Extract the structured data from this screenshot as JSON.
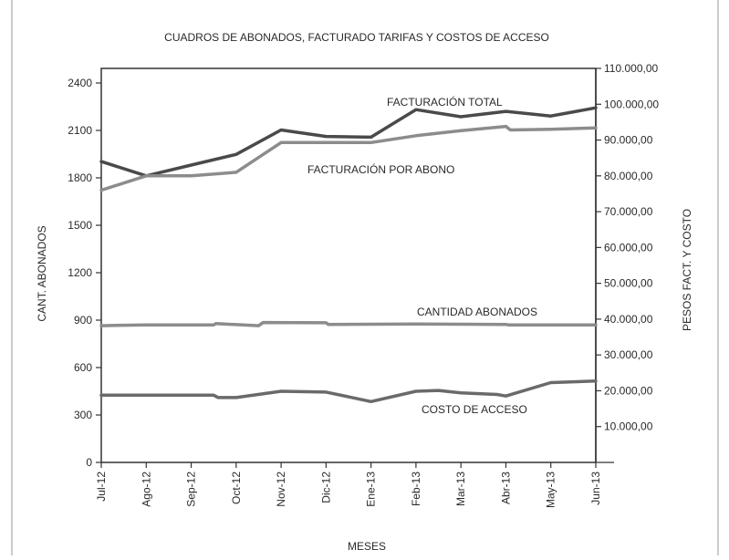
{
  "chart_data": {
    "type": "line",
    "title": "CUADROS DE ABONADOS, FACTURADO TARIFAS Y COSTOS DE ACCESO",
    "xlabel": "MESES",
    "ylabel_left": "CANT. ABONADOS",
    "ylabel_right": "PESOS FACT. Y COSTO",
    "categories": [
      "Jul-12",
      "Ago-12",
      "Sep-12",
      "Oct-12",
      "Nov-12",
      "Dic-12",
      "Ene-13",
      "Feb-13",
      "Mar-13",
      "Abr-13",
      "May-13",
      "Jun-13"
    ],
    "left_axis": {
      "min": 0,
      "max": 2400,
      "ticks": [
        "0",
        "300",
        "600",
        "900",
        "1200",
        "1500",
        "1800",
        "2100",
        "2400"
      ]
    },
    "right_axis": {
      "min": 0,
      "max": 110000,
      "ticks": [
        "10.000,00",
        "20.000,00",
        "30.000,00",
        "40.000,00",
        "50.000,00",
        "60.000,00",
        "70.000,00",
        "80.000,00",
        "90.000,00",
        "100.000,00",
        "110.000,00"
      ]
    },
    "series": [
      {
        "name": "FACTURACIÓN TOTAL",
        "axis": "right",
        "color": "#4a4a4a",
        "points": [
          [
            0,
            84000
          ],
          [
            1,
            80000
          ],
          [
            2,
            83000
          ],
          [
            3,
            86000
          ],
          [
            4,
            92800
          ],
          [
            5,
            91000
          ],
          [
            6,
            90800
          ],
          [
            7,
            98500
          ],
          [
            8,
            96500
          ],
          [
            9,
            98000
          ],
          [
            10,
            96700
          ],
          [
            11,
            99000
          ]
        ]
      },
      {
        "name": "FACTURACIÓN POR ABONO",
        "axis": "right",
        "color": "#8c8c8c",
        "points": [
          [
            0,
            76000
          ],
          [
            1,
            80000
          ],
          [
            2,
            80000
          ],
          [
            3,
            81000
          ],
          [
            4,
            89300
          ],
          [
            5,
            89300
          ],
          [
            6,
            89300
          ],
          [
            7,
            91200
          ],
          [
            8,
            92600
          ],
          [
            9,
            93800
          ],
          [
            9.1,
            92800
          ],
          [
            10,
            93000
          ],
          [
            11,
            93400
          ]
        ]
      },
      {
        "name": "CANTIDAD ABONADOS",
        "axis": "left",
        "color": "#8c8c8c",
        "points": [
          [
            0,
            865
          ],
          [
            1,
            870
          ],
          [
            2,
            870
          ],
          [
            2.5,
            870
          ],
          [
            2.55,
            878
          ],
          [
            3.5,
            865
          ],
          [
            3.6,
            885
          ],
          [
            5,
            883
          ],
          [
            5.05,
            873
          ],
          [
            7,
            875
          ],
          [
            9,
            873
          ],
          [
            9.05,
            870
          ],
          [
            11,
            870
          ]
        ]
      },
      {
        "name": "COSTO DE ACCESO",
        "axis": "left",
        "color": "#6a6a6a",
        "points": [
          [
            0,
            425
          ],
          [
            2.5,
            425
          ],
          [
            2.6,
            410
          ],
          [
            3,
            410
          ],
          [
            4,
            450
          ],
          [
            5,
            445
          ],
          [
            6,
            385
          ],
          [
            7,
            450
          ],
          [
            7.5,
            455
          ],
          [
            8,
            440
          ],
          [
            8.8,
            430
          ],
          [
            9,
            420
          ],
          [
            10,
            505
          ],
          [
            11,
            515
          ]
        ]
      }
    ],
    "grid": false,
    "legend": "inline annotations"
  }
}
